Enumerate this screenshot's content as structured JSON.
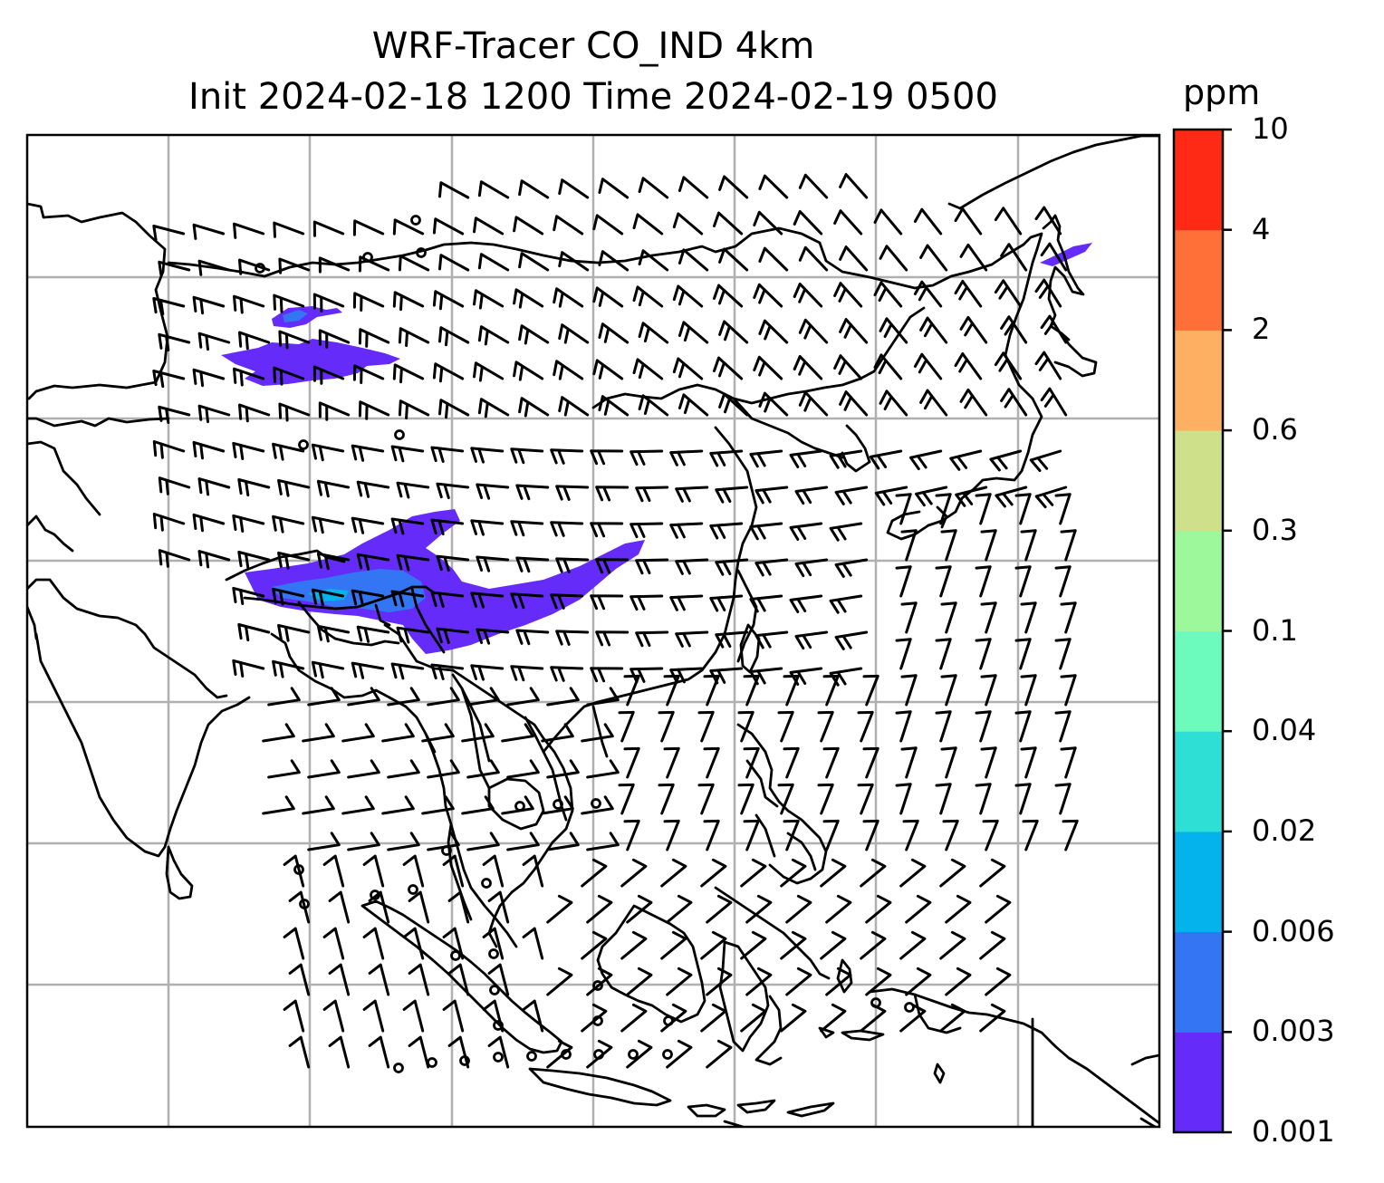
{
  "title": {
    "line1": "WRF-Tracer CO_IND 4km",
    "line2": "Init 2024-02-18 1200 Time 2024-02-19 0500"
  },
  "colorbar": {
    "unit": "ppm",
    "levels": [
      "0.001",
      "0.003",
      "0.006",
      "0.02",
      "0.04",
      "0.1",
      "0.3",
      "0.6",
      "2",
      "4",
      "10"
    ],
    "colors": [
      "#652bf8",
      "#3375f3",
      "#04b3ec",
      "#2ddfd4",
      "#6dfabd",
      "#9df89b",
      "#cfe08a",
      "#feb062",
      "#ff7038",
      "#ff2a16"
    ]
  },
  "map": {
    "land_outline_color": "#000000",
    "grid_color": "#b0b0b0",
    "tracer_fill_color": "#652bf8",
    "tracer_core_color": "#3375f3"
  }
}
